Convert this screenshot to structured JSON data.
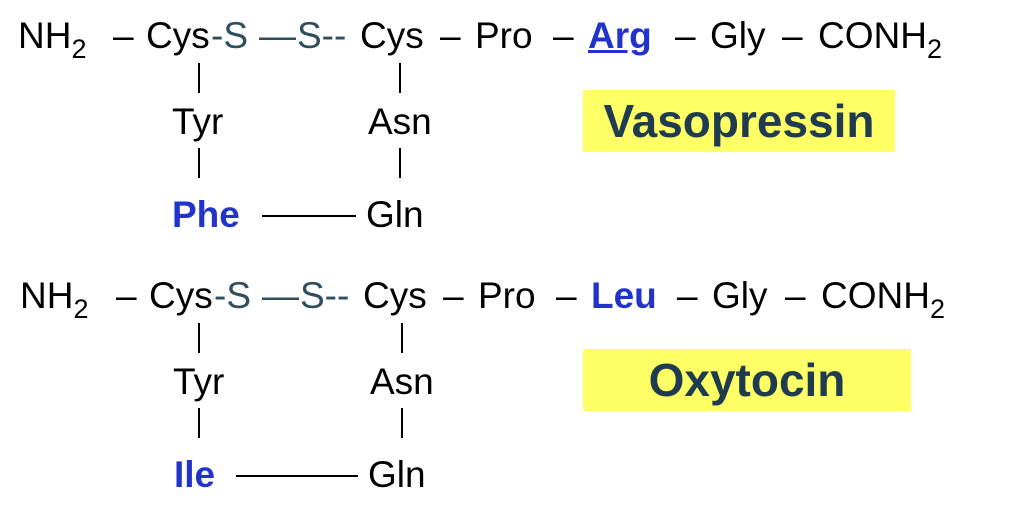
{
  "vasopressin": {
    "chain": {
      "nh2": "NH",
      "nh2_sub": "2",
      "dash1": "–",
      "cys1": "Cys",
      "s1": "-S",
      "ssbond": "—",
      "s2": "S--",
      "cys2": "Cys",
      "dash2": "–",
      "pro": "Pro",
      "dash3": "–",
      "res8": "Arg",
      "dash4": "–",
      "gly": "Gly",
      "dash5": "–",
      "conh2": "CONH",
      "conh2_sub": "2"
    },
    "ring": {
      "tyr": "Tyr",
      "asn": "Asn",
      "res3": "Phe",
      "gln": "Gln"
    },
    "name": "Vasopressin"
  },
  "oxytocin": {
    "chain": {
      "nh2": "NH",
      "nh2_sub": "2",
      "dash1": "–",
      "cys1": "Cys",
      "s1": "-S",
      "ssbond": "—",
      "s2": "S--",
      "cys2": "Cys",
      "dash2": "–",
      "pro": "Pro",
      "dash3": "–",
      "res8": "Leu",
      "dash4": "–",
      "gly": "Gly",
      "dash5": "–",
      "conh2": "CONH",
      "conh2_sub": "2"
    },
    "ring": {
      "tyr": "Tyr",
      "asn": "Asn",
      "res3": "Ile",
      "gln": "Gln"
    },
    "name": "Oxytocin"
  },
  "colors": {
    "highlight": "#ffff66",
    "label_text": "#1f3b4f",
    "residue_blue": "#2233cc",
    "sulfur": "#2f4f5f"
  }
}
